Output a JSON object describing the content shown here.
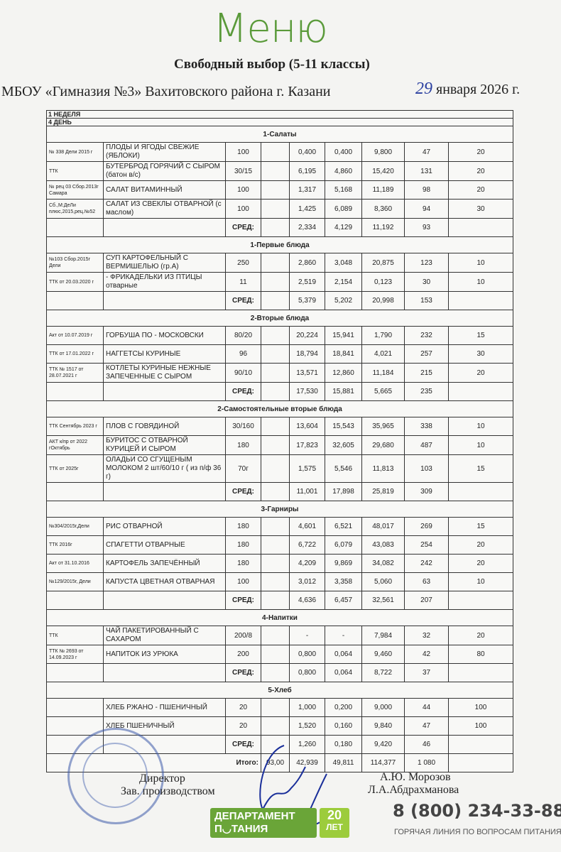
{
  "header": {
    "title": "Меню",
    "subtitle": "Свободный выбор (5-11 классы)",
    "school": "МБОУ «Гимназия №3» Вахитовского района г. Казани",
    "date_day": "29",
    "date_rest": " января 2026 г."
  },
  "table": {
    "week": "1 НЕДЕЛЯ",
    "day": "4 ДЕНЬ",
    "avg_label": "СРЕД:",
    "total_label": "Итого:",
    "total": {
      "blank": "93,00",
      "p": "42,939",
      "f": "49,811",
      "c": "114,377",
      "kcal": "1 080"
    },
    "sections": [
      {
        "title": "1-Салаты",
        "items": [
          {
            "code": "№ 338 Дели 2015 г",
            "name": "ПЛОДЫ И ЯГОДЫ СВЕЖИЕ (ЯБЛОКИ)",
            "portion": "100",
            "p": "0,400",
            "f": "0,400",
            "c": "9,800",
            "kcal": "47",
            "price": "20"
          },
          {
            "code": "ТТК",
            "name": "БУТЕРБРОД ГОРЯЧИЙ С СЫРОМ (батон в/с)",
            "portion": "30/15",
            "p": "6,195",
            "f": "4,860",
            "c": "15,420",
            "kcal": "131",
            "price": "20"
          },
          {
            "code": "№ рец 03 Сбор.2013г Самара",
            "name": "САЛАТ ВИТАМИННЫЙ",
            "portion": "100",
            "p": "1,317",
            "f": "5,168",
            "c": "11,189",
            "kcal": "98",
            "price": "20"
          },
          {
            "code": "Сб.,М:ДеЛи плюс,2015,рец.№52",
            "name": "САЛАТ ИЗ СВЕКЛЫ ОТВАРНОЙ (с маслом)",
            "portion": "100",
            "p": "1,425",
            "f": "6,089",
            "c": "8,360",
            "kcal": "94",
            "price": "30"
          }
        ],
        "avg": {
          "p": "2,334",
          "f": "4,129",
          "c": "11,192",
          "kcal": "93"
        }
      },
      {
        "title": "1-Первые блюда",
        "items": [
          {
            "code": "№103 Сбор.2015г Дели",
            "name": "СУП КАРТОФЕЛЬНЫЙ С ВЕРМИШЕЛЬЮ (гр.А)",
            "portion": "250",
            "p": "2,860",
            "f": "3,048",
            "c": "20,875",
            "kcal": "123",
            "price": "10"
          },
          {
            "code": "ТТК от 20.03.2020 г",
            "name": "- ФРИКАДЕЛЬКИ ИЗ ПТИЦЫ отварные",
            "portion": "11",
            "p": "2,519",
            "f": "2,154",
            "c": "0,123",
            "kcal": "30",
            "price": "10"
          }
        ],
        "avg": {
          "p": "5,379",
          "f": "5,202",
          "c": "20,998",
          "kcal": "153"
        }
      },
      {
        "title": "2-Вторые блюда",
        "items": [
          {
            "code": "Акт от 10.07.2019 г",
            "name": "ГОРБУША ПО - МОСКОВСКИ",
            "portion": "80/20",
            "p": "20,224",
            "f": "15,941",
            "c": "1,790",
            "kcal": "232",
            "price": "15"
          },
          {
            "code": "ТТК от 17.01.2022 г",
            "name": "НАГГЕТСЫ КУРИНЫЕ",
            "portion": "96",
            "p": "18,794",
            "f": "18,841",
            "c": "4,021",
            "kcal": "257",
            "price": "30"
          },
          {
            "code": "ТТК № 1517 от 28.07.2021 г",
            "name": "КОТЛЕТЫ КУРИНЫЕ НЕЖНЫЕ ЗАПЕЧЕННЫЕ С СЫРОМ",
            "portion": "90/10",
            "p": "13,571",
            "f": "12,860",
            "c": "11,184",
            "kcal": "215",
            "price": "20"
          }
        ],
        "avg": {
          "p": "17,530",
          "f": "15,881",
          "c": "5,665",
          "kcal": "235"
        }
      },
      {
        "title": "2-Самостоятельные вторые блюда",
        "items": [
          {
            "code": "ТТК Сентябрь 2023 г",
            "name": "ПЛОВ С ГОВЯДИНОЙ",
            "portion": "30/160",
            "p": "13,604",
            "f": "15,543",
            "c": "35,965",
            "kcal": "338",
            "price": "10"
          },
          {
            "code": "АКТ к/пр от 2022 гОктябрь",
            "name": "БУРИТОС С ОТВАРНОЙ КУРИЦЕЙ И СЫРОМ",
            "portion": "180",
            "p": "17,823",
            "f": "32,605",
            "c": "29,680",
            "kcal": "487",
            "price": "10"
          },
          {
            "code": "ТТК от 2025г",
            "name": "ОЛАДЬИ СО СГУЩЕНЫМ МОЛОКОМ 2 шт/60/10 г ( из п/ф 36 г)",
            "portion": "70г",
            "p": "1,575",
            "f": "5,546",
            "c": "11,813",
            "kcal": "103",
            "price": "15"
          }
        ],
        "avg": {
          "p": "11,001",
          "f": "17,898",
          "c": "25,819",
          "kcal": "309"
        }
      },
      {
        "title": "3-Гарниры",
        "items": [
          {
            "code": "№304/2015г,Дели",
            "name": "РИС ОТВАРНОЙ",
            "portion": "180",
            "p": "4,601",
            "f": "6,521",
            "c": "48,017",
            "kcal": "269",
            "price": "15"
          },
          {
            "code": "ТТК 2016г",
            "name": "СПАГЕТТИ ОТВАРНЫЕ",
            "portion": "180",
            "p": "6,722",
            "f": "6,079",
            "c": "43,083",
            "kcal": "254",
            "price": "20"
          },
          {
            "code": "Акт от 31.10.2016",
            "name": "КАРТОФЕЛЬ ЗАПЕЧЁННЫЙ",
            "portion": "180",
            "p": "4,209",
            "f": "9,869",
            "c": "34,082",
            "kcal": "242",
            "price": "20"
          },
          {
            "code": "№129/2015г, Дели",
            "name": "КАПУСТА ЦВЕТНАЯ ОТВАРНАЯ",
            "portion": "100",
            "p": "3,012",
            "f": "3,358",
            "c": "5,060",
            "kcal": "63",
            "price": "10"
          }
        ],
        "avg": {
          "p": "4,636",
          "f": "6,457",
          "c": "32,561",
          "kcal": "207"
        }
      },
      {
        "title": "4-Напитки",
        "items": [
          {
            "code": "ТТК",
            "name": "ЧАЙ ПАКЕТИРОВАННЫЙ С САХАРОМ",
            "portion": "200/8",
            "p": "-",
            "f": "-",
            "c": "7,984",
            "kcal": "32",
            "price": "20"
          },
          {
            "code": "ТТК № 2693 от 14.09.2023 г",
            "name": "НАПИТОК ИЗ УРЮКА",
            "portion": "200",
            "p": "0,800",
            "f": "0,064",
            "c": "9,460",
            "kcal": "42",
            "price": "80"
          }
        ],
        "avg": {
          "p": "0,800",
          "f": "0,064",
          "c": "8,722",
          "kcal": "37"
        }
      },
      {
        "title": "5-Хлеб",
        "items": [
          {
            "code": "",
            "name": "ХЛЕБ РЖАНО - ПШЕНИЧНЫЙ",
            "portion": "20",
            "p": "1,000",
            "f": "0,200",
            "c": "9,000",
            "kcal": "44",
            "price": "100"
          },
          {
            "code": "",
            "name": "ХЛЕБ ПШЕНИЧНЫЙ",
            "portion": "20",
            "p": "1,520",
            "f": "0,160",
            "c": "9,840",
            "kcal": "47",
            "price": "100"
          }
        ],
        "avg": {
          "p": "1,260",
          "f": "0,180",
          "c": "9,420",
          "kcal": "46"
        }
      }
    ]
  },
  "signatures": {
    "director_label": "Директор",
    "director_name": "А.Ю. Морозов",
    "production_label": "Зав. производством",
    "production_name": "Л.А.Абдрахманова"
  },
  "footer": {
    "logo_text": "ДЕПАРТАМЕНТ ПИТАНИЯ КАЗАНЬ 20 ЛЕТ",
    "phone": "8 (800) 234-33-88",
    "hotline": "ГОРЯЧАЯ ЛИНИЯ ПО ВОПРОСАМ ПИТАНИЯ"
  },
  "colors": {
    "title": "#5a9a3a",
    "logo": "#6aa538",
    "stamp": "#3c5aaa",
    "signature": "#1a2f9a"
  }
}
